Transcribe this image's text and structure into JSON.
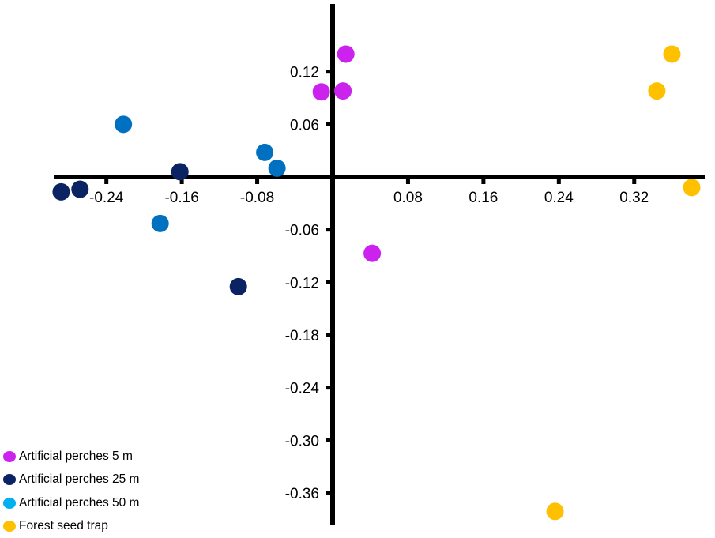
{
  "chart_data": {
    "type": "scatter",
    "title": "",
    "xlabel": "",
    "ylabel": "",
    "xlim": [
      -0.295,
      0.395
    ],
    "ylim": [
      -0.395,
      0.195
    ],
    "grid": false,
    "legend_placement": "bottom-left",
    "x_ticks": [
      -0.24,
      -0.16,
      -0.08,
      0.08,
      0.16,
      0.24,
      0.32
    ],
    "x_tick_labels": [
      "-0.24",
      "-0.16",
      "-0.08",
      "0.08",
      "0.16",
      "0.24",
      "0.32"
    ],
    "y_ticks": [
      0.12,
      0.06,
      -0.06,
      -0.12,
      -0.18,
      -0.24,
      -0.3,
      -0.36
    ],
    "y_tick_labels": [
      "0.12",
      "0.06",
      "-0.06",
      "-0.12",
      "-0.18",
      "-0.24",
      "-0.30",
      "-0.36"
    ],
    "series": [
      {
        "name": "Artificial perches 5 m",
        "color": "#cc22ee",
        "legend_color": "#cc22ee",
        "x": [
          0.014,
          -0.012,
          0.011,
          0.042
        ],
        "y": [
          0.14,
          0.097,
          0.098,
          -0.087
        ]
      },
      {
        "name": "Artificial perches 25 m",
        "color": "#0b2263",
        "legend_color": "#0b2263",
        "x": [
          -0.288,
          -0.268,
          -0.162,
          -0.1
        ],
        "y": [
          -0.017,
          -0.014,
          0.006,
          -0.125
        ]
      },
      {
        "name": "Artificial perches 50 m",
        "color": "#0070c0",
        "legend_color": "#00b0f0",
        "x": [
          -0.222,
          -0.072,
          -0.059,
          -0.183
        ],
        "y": [
          0.06,
          0.028,
          0.01,
          -0.053
        ]
      },
      {
        "name": "Forest seed trap",
        "color": "#ffc000",
        "legend_color": "#ffc000",
        "x": [
          0.36,
          0.344,
          0.381,
          0.236
        ],
        "y": [
          0.14,
          0.098,
          -0.012,
          -0.381
        ]
      }
    ]
  }
}
